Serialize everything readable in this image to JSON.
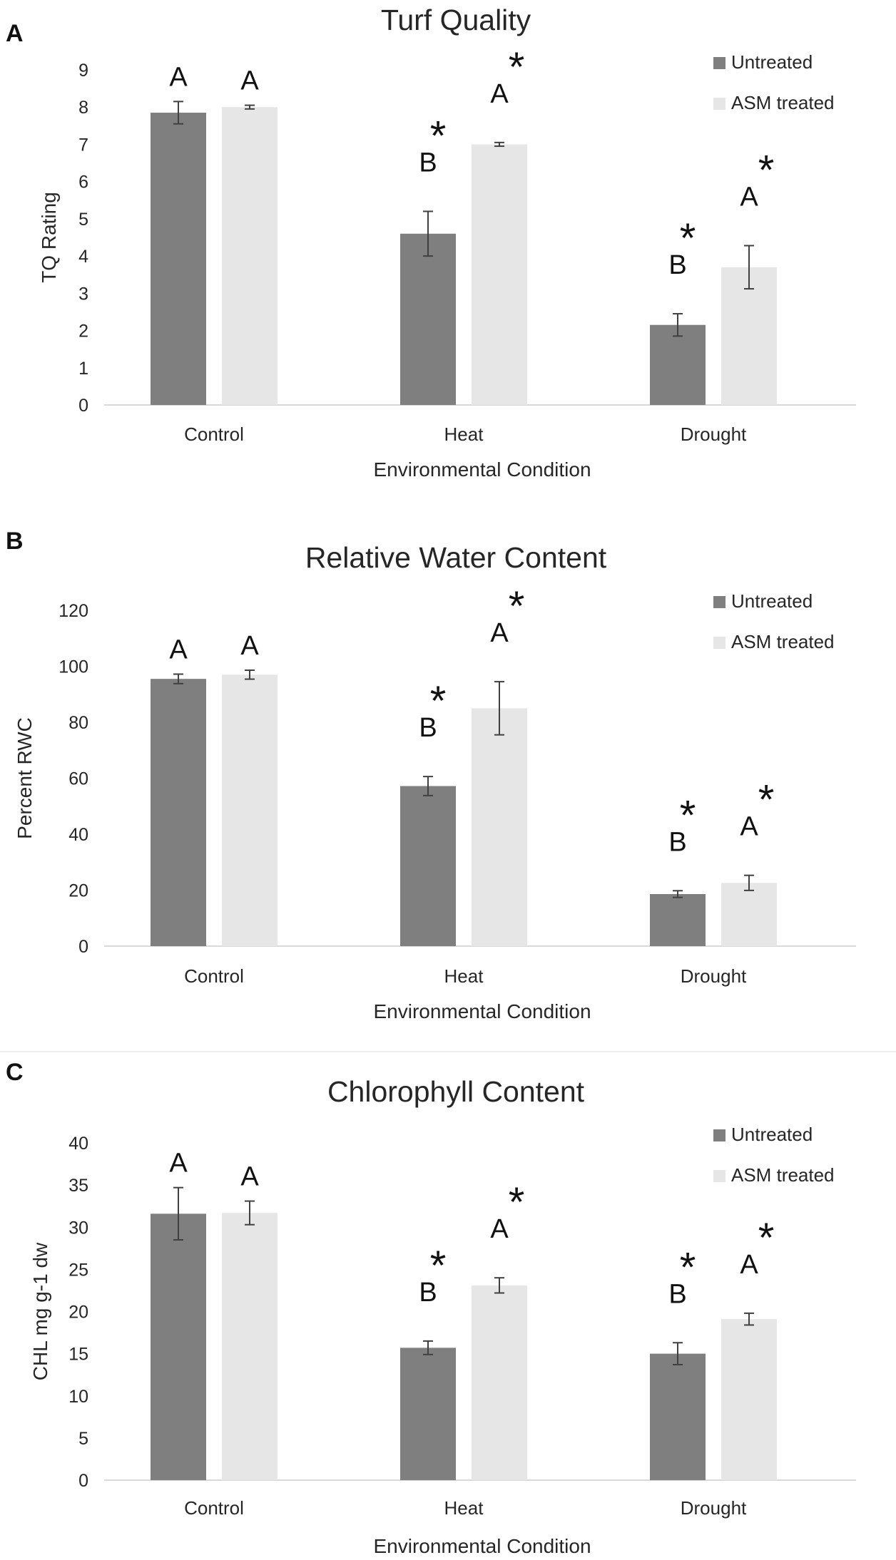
{
  "chart_data": [
    {
      "panel": "A",
      "type": "bar",
      "title": "Turf Quality",
      "xlabel": "Environmental Condition",
      "ylabel": "TQ Rating",
      "ylim": [
        0,
        9
      ],
      "yticks": [
        0,
        1,
        2,
        3,
        4,
        5,
        6,
        7,
        8,
        9
      ],
      "categories": [
        "Control",
        "Heat",
        "Drought"
      ],
      "legend_position": "top-right",
      "series": [
        {
          "name": "Untreated",
          "color": "#7f7f7f",
          "values": [
            7.85,
            4.6,
            2.15
          ],
          "errors": [
            0.3,
            0.6,
            0.3
          ],
          "letters": [
            "A",
            "B",
            "B"
          ],
          "stars": [
            false,
            true,
            true
          ]
        },
        {
          "name": "ASM treated",
          "color": "#e6e6e6",
          "values": [
            8.0,
            7.0,
            3.7
          ],
          "errors": [
            0.05,
            0.05,
            0.58
          ],
          "letters": [
            "A",
            "A",
            "A"
          ],
          "stars": [
            false,
            true,
            true
          ]
        }
      ],
      "star_symbol": "*"
    },
    {
      "panel": "B",
      "type": "bar",
      "title": "Relative Water Content",
      "xlabel": "Environmental Condition",
      "ylabel": "Percent RWC",
      "ylim": [
        0,
        120
      ],
      "yticks": [
        0,
        20,
        40,
        60,
        80,
        100,
        120
      ],
      "categories": [
        "Control",
        "Heat",
        "Drought"
      ],
      "legend_position": "top-right",
      "series": [
        {
          "name": "Untreated",
          "color": "#7f7f7f",
          "values": [
            95.5,
            57.2,
            18.6
          ],
          "errors": [
            1.7,
            3.4,
            1.2
          ],
          "letters": [
            "A",
            "B",
            "B"
          ],
          "stars": [
            false,
            true,
            true
          ]
        },
        {
          "name": "ASM treated",
          "color": "#e6e6e6",
          "values": [
            97.0,
            85.0,
            22.6
          ],
          "errors": [
            1.6,
            9.5,
            2.7
          ],
          "letters": [
            "A",
            "A",
            "A"
          ],
          "stars": [
            false,
            true,
            true
          ]
        }
      ],
      "star_symbol": "*"
    },
    {
      "panel": "C",
      "type": "bar",
      "title": "Chlorophyll Content",
      "xlabel": "Environmental Condition",
      "ylabel": "CHL mg g-1 dw",
      "ylim": [
        0,
        40
      ],
      "yticks": [
        0,
        5,
        10,
        15,
        20,
        25,
        30,
        35,
        40
      ],
      "categories": [
        "Control",
        "Heat",
        "Drought"
      ],
      "legend_position": "top-right",
      "series": [
        {
          "name": "Untreated",
          "color": "#7f7f7f",
          "values": [
            31.6,
            15.7,
            15.0
          ],
          "errors": [
            3.1,
            0.8,
            1.3
          ],
          "letters": [
            "A",
            "B",
            "B"
          ],
          "stars": [
            false,
            true,
            true
          ]
        },
        {
          "name": "ASM treated",
          "color": "#e6e6e6",
          "values": [
            31.7,
            23.1,
            19.1
          ],
          "errors": [
            1.4,
            0.9,
            0.7
          ],
          "letters": [
            "A",
            "A",
            "A"
          ],
          "stars": [
            false,
            true,
            true
          ]
        }
      ],
      "star_symbol": "*"
    }
  ]
}
